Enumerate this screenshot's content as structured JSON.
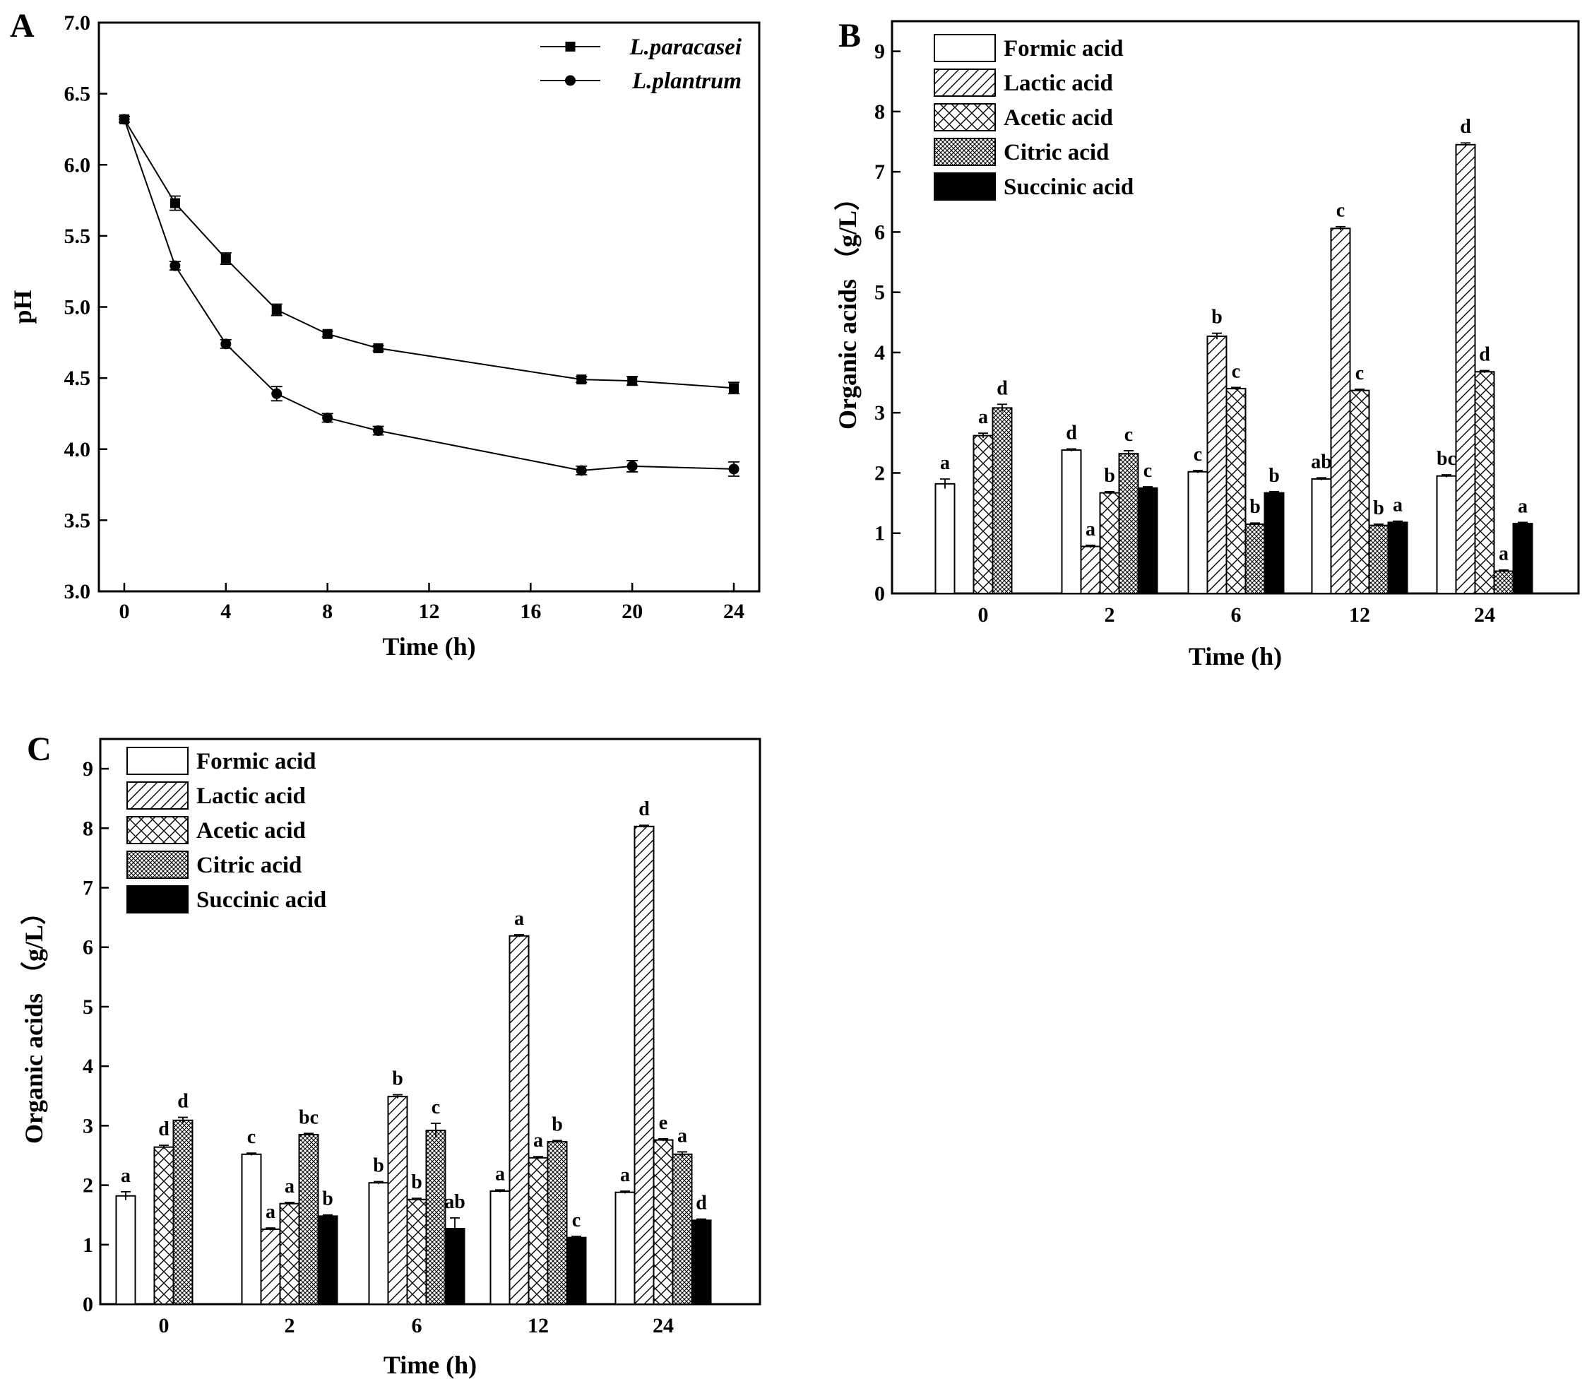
{
  "colors": {
    "ink": "#000000",
    "background": "#ffffff"
  },
  "panels": {
    "A": {
      "letter": "A",
      "chart_data": {
        "type": "line",
        "xlabel": "Time (h)",
        "ylabel": "pH",
        "xlim": [
          -1,
          25
        ],
        "ylim": [
          3.0,
          7.0
        ],
        "xticks": [
          0,
          4,
          8,
          12,
          16,
          20,
          24
        ],
        "yticks": [
          3.0,
          3.5,
          4.0,
          4.5,
          5.0,
          5.5,
          6.0,
          6.5,
          7.0
        ],
        "ytick_labels": [
          "3.0",
          "3.5",
          "4.0",
          "4.5",
          "5.0",
          "5.5",
          "6.0",
          "6.5",
          "7.0"
        ],
        "legend_position": "top-right",
        "series": [
          {
            "name": "L.paracasei",
            "marker": "square",
            "x": [
              0,
              2,
              4,
              6,
              8,
              10,
              18,
              20,
              24
            ],
            "y": [
              6.32,
              5.73,
              5.34,
              4.98,
              4.81,
              4.71,
              4.49,
              4.48,
              4.43
            ],
            "err": [
              0.02,
              0.05,
              0.04,
              0.04,
              0.02,
              0.02,
              0.02,
              0.03,
              0.04
            ]
          },
          {
            "name": "L.plantrum",
            "marker": "circle",
            "x": [
              0,
              2,
              4,
              6,
              8,
              10,
              18,
              20,
              24
            ],
            "y": [
              6.32,
              5.29,
              4.74,
              4.39,
              4.22,
              4.13,
              3.85,
              3.88,
              3.86
            ],
            "err": [
              0.02,
              0.03,
              0.03,
              0.05,
              0.03,
              0.03,
              0.03,
              0.04,
              0.05
            ]
          }
        ]
      }
    },
    "B": {
      "letter": "B",
      "chart_data": {
        "type": "bar",
        "xlabel": "Time (h)",
        "ylabel": "Organic acids （g/L）",
        "ylim": [
          0,
          9.5
        ],
        "yticks": [
          0,
          1,
          2,
          3,
          4,
          5,
          6,
          7,
          8,
          9
        ],
        "categories": [
          "0",
          "2",
          "6",
          "12",
          "24"
        ],
        "legend_position": "top-left",
        "series": [
          {
            "name": "Formic acid",
            "pattern": "none",
            "values": [
              1.82,
              2.38,
              2.02,
              1.9,
              1.95
            ],
            "err": [
              0.08,
              0.02,
              0.02,
              0.02,
              0.02
            ],
            "labels": [
              "a",
              "d",
              "c",
              "ab",
              "bc"
            ]
          },
          {
            "name": "Lactic acid",
            "pattern": "diag",
            "values": [
              0,
              0.78,
              4.27,
              6.06,
              7.45
            ],
            "err": [
              0,
              0.02,
              0.05,
              0.03,
              0.03
            ],
            "labels": [
              "",
              "a",
              "b",
              "c",
              "d"
            ]
          },
          {
            "name": "Acetic acid",
            "pattern": "cross",
            "values": [
              2.62,
              1.67,
              3.4,
              3.37,
              3.68
            ],
            "err": [
              0.04,
              0.02,
              0.02,
              0.02,
              0.02
            ],
            "labels": [
              "a",
              "b",
              "c",
              "c",
              "d"
            ]
          },
          {
            "name": "Citric acid",
            "pattern": "dense",
            "values": [
              3.08,
              2.32,
              1.15,
              1.13,
              0.37
            ],
            "err": [
              0.06,
              0.05,
              0.02,
              0.02,
              0.02
            ],
            "labels": [
              "d",
              "c",
              "b",
              "b",
              "a"
            ]
          },
          {
            "name": "Succinic acid",
            "pattern": "solid",
            "values": [
              0,
              1.75,
              1.67,
              1.18,
              1.16
            ],
            "err": [
              0,
              0.02,
              0.02,
              0.02,
              0.02
            ],
            "labels": [
              "",
              "c",
              "b",
              "a",
              "a"
            ]
          }
        ]
      }
    },
    "C": {
      "letter": "C",
      "chart_data": {
        "type": "bar",
        "xlabel": "Time (h)",
        "ylabel": "Organic acids （g/L）",
        "ylim": [
          0,
          9.5
        ],
        "yticks": [
          0,
          1,
          2,
          3,
          4,
          5,
          6,
          7,
          8,
          9
        ],
        "categories": [
          "0",
          "2",
          "6",
          "12",
          "24"
        ],
        "legend_position": "top-left",
        "series": [
          {
            "name": "Formic acid",
            "pattern": "none",
            "values": [
              1.82,
              2.52,
              2.04,
              1.9,
              1.88
            ],
            "err": [
              0.07,
              0.02,
              0.02,
              0.02,
              0.02
            ],
            "labels": [
              "a",
              "c",
              "b",
              "a",
              "a"
            ]
          },
          {
            "name": "Lactic acid",
            "pattern": "diag",
            "values": [
              0,
              1.26,
              3.49,
              6.19,
              8.03
            ],
            "err": [
              0,
              0.02,
              0.03,
              0.02,
              0.02
            ],
            "labels": [
              "",
              "a",
              "b",
              "a",
              "d"
            ]
          },
          {
            "name": "Acetic acid",
            "pattern": "cross",
            "values": [
              2.64,
              1.69,
              1.76,
              2.46,
              2.76
            ],
            "err": [
              0.03,
              0.02,
              0.02,
              0.02,
              0.02
            ],
            "labels": [
              "d",
              "a",
              "b",
              "a",
              "e"
            ]
          },
          {
            "name": "Citric acid",
            "pattern": "dense",
            "values": [
              3.09,
              2.85,
              2.92,
              2.73,
              2.52
            ],
            "err": [
              0.05,
              0.02,
              0.12,
              0.02,
              0.04
            ],
            "labels": [
              "d",
              "bc",
              "c",
              "b",
              "a"
            ]
          },
          {
            "name": "Succinic acid",
            "pattern": "solid",
            "values": [
              0,
              1.48,
              1.27,
              1.12,
              1.41
            ],
            "err": [
              0,
              0.02,
              0.18,
              0.02,
              0.02
            ],
            "labels": [
              "",
              "b",
              "ab",
              "c",
              "d"
            ]
          }
        ]
      }
    }
  }
}
